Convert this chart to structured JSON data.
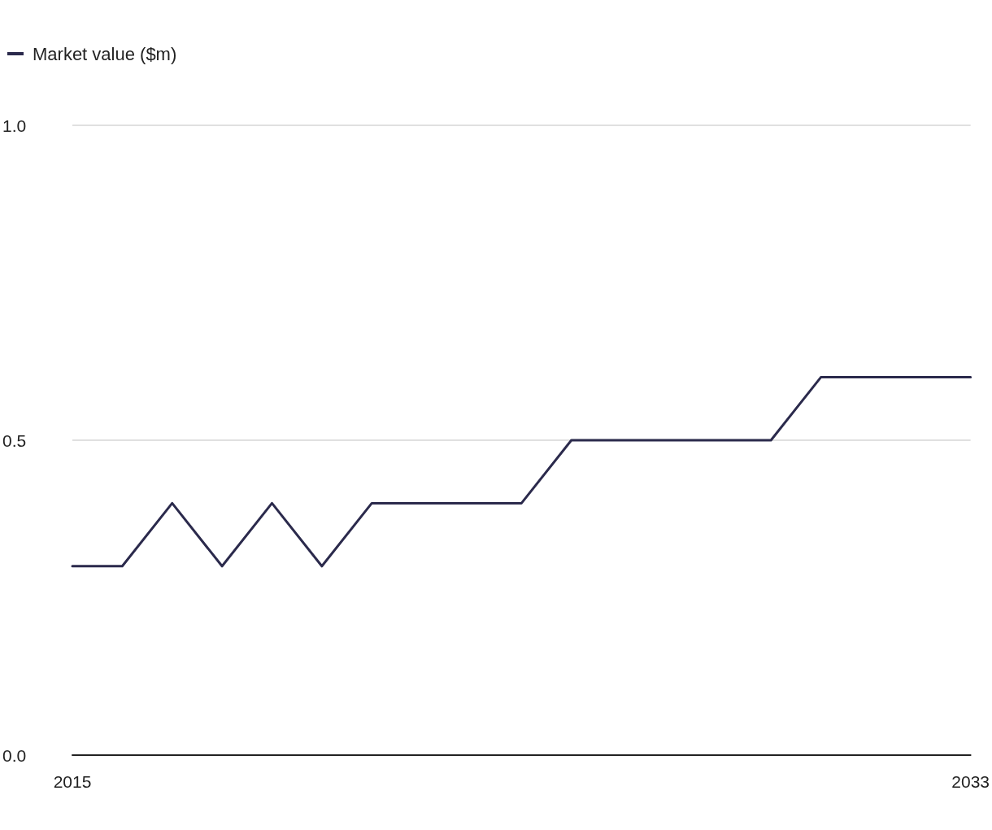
{
  "chart_data": {
    "type": "line",
    "x": [
      2015,
      2016,
      2017,
      2018,
      2019,
      2020,
      2021,
      2022,
      2023,
      2024,
      2025,
      2026,
      2027,
      2028,
      2029,
      2030,
      2031,
      2032,
      2033
    ],
    "series": [
      {
        "name": "Market value ($m)",
        "color": "#2b2a4c",
        "values": [
          0.3,
          0.3,
          0.4,
          0.3,
          0.4,
          0.3,
          0.4,
          0.4,
          0.4,
          0.4,
          0.5,
          0.5,
          0.5,
          0.5,
          0.5,
          0.6,
          0.6,
          0.6,
          0.6
        ]
      }
    ],
    "xlim": [
      2015,
      2033
    ],
    "xticks": [
      2015,
      2033
    ],
    "ylim": [
      0,
      1
    ],
    "yticks": [
      {
        "value": 0,
        "label": "0.0"
      },
      {
        "value": 0.5,
        "label": "0.5"
      },
      {
        "value": 1,
        "label": "1.0"
      }
    ],
    "grid": "y",
    "legend": "top left",
    "marker": "none",
    "line_style": "solid"
  }
}
